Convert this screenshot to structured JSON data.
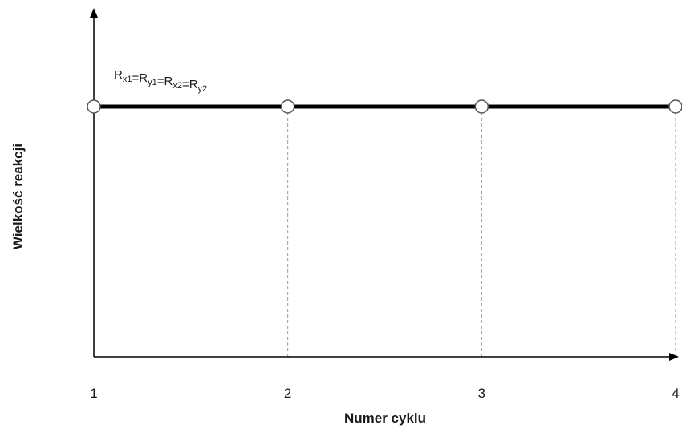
{
  "chart_data": {
    "type": "line",
    "title": "",
    "xlabel": "Numer cyklu",
    "ylabel": "Wielkość reakcji",
    "x": [
      1,
      2,
      3,
      4
    ],
    "xlim": [
      1,
      4
    ],
    "y_ticks_shown": false,
    "grid": "vertical dashed lines at each x tick",
    "series": [
      {
        "name": "Rx1=Ry1=Rx2=Ry2",
        "name_parts": [
          {
            "base": "R",
            "sub": "x1"
          },
          {
            "text": "="
          },
          {
            "base": "R",
            "sub": "y1"
          },
          {
            "text": "="
          },
          {
            "base": "R",
            "sub": "x2"
          },
          {
            "text": "="
          },
          {
            "base": "R",
            "sub": "y2"
          }
        ],
        "values": [
          1,
          1,
          1,
          1
        ],
        "marker": "open-circle",
        "color": "#000000"
      }
    ]
  }
}
